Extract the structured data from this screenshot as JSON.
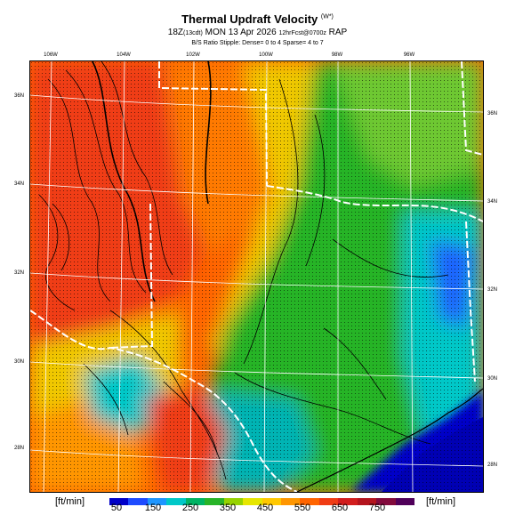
{
  "header": {
    "title": "Thermal Updraft Velocity",
    "title_unit": "(W*)",
    "line2_prefix": "18Z",
    "line2_local": "(13cdt)",
    "line2_date": "MON 13 Apr 2026",
    "line2_fcst": "12hrFcst@0700z",
    "line2_model": "RAP",
    "line3": "B/S Ratio Stipple: Dense= 0 to 4 Sparse= 4 to 7"
  },
  "longitude_labels": [
    "106W",
    "104W",
    "102W",
    "100W",
    "98W",
    "96W"
  ],
  "latitude_labels_left": [
    "36N",
    "34N",
    "32N",
    "30N",
    "28N"
  ],
  "latitude_labels_right": [
    "36N",
    "34N",
    "32N",
    "30N",
    "28N"
  ],
  "colorbar": {
    "unit_left": "[ft/min]",
    "unit_right": "[ft/min]",
    "labels": [
      "50",
      "150",
      "250",
      "350",
      "450",
      "550",
      "650",
      "750"
    ],
    "colors": [
      "#0000c8",
      "#1e4bff",
      "#1e96ff",
      "#00c8c8",
      "#00b464",
      "#28b428",
      "#96d200",
      "#e6e600",
      "#ffc800",
      "#ff9600",
      "#ff6400",
      "#f03c14",
      "#d21e1e",
      "#b4141e",
      "#820a3c",
      "#50005a"
    ]
  },
  "colors": {
    "stipple": "#000000",
    "state_border": "#ffffff",
    "grid": "#ffffff",
    "contour": "#000000"
  }
}
